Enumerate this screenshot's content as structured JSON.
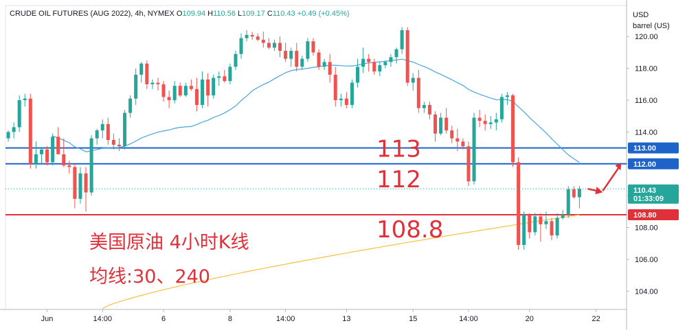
{
  "header": {
    "symbol": "CRUDE OIL FUTURES (AUG 2022), 4h, NYMEX",
    "o_label": "O",
    "o_value": "109.94",
    "h_label": "H",
    "h_value": "110.56",
    "l_label": "L",
    "l_value": "109.17",
    "c_label": "C",
    "c_value": "110.43",
    "change": "+0.49 (+0.45%)"
  },
  "axis_unit": [
    "USD",
    "barrel (US)"
  ],
  "annotations": {
    "title_line1": "美国原油 4小时K线",
    "title_line2": "均线:30、240",
    "level_113": "113",
    "level_112": "112",
    "level_1088": "108.8"
  },
  "price_tags": {
    "last_price": "110.43",
    "countdown": "01:33:09",
    "tag_113": "113.00",
    "tag_112": "112.00",
    "tag_1088": "108.80"
  },
  "colors": {
    "up": "#26a69a",
    "down": "#ef5350",
    "ma30": "#4aa3df",
    "ma240": "#f5c242",
    "level_blue": "#1e63c8",
    "level_red": "#e0303a",
    "text_red": "#e0303a"
  },
  "chart_data": {
    "type": "candlestick",
    "y_ticks": [
      "104.00",
      "106.00",
      "108.00",
      "110.00",
      "112.00",
      "114.00",
      "116.00",
      "118.00",
      "120.00"
    ],
    "ylim": [
      102.85,
      121.95
    ],
    "x_ticks": [
      {
        "label": "Jun",
        "bar": 7
      },
      {
        "label": "14:00",
        "bar": 17
      },
      {
        "label": "6",
        "bar": 28
      },
      {
        "label": "8",
        "bar": 40
      },
      {
        "label": "14:00",
        "bar": 50
      },
      {
        "label": "13",
        "bar": 61
      },
      {
        "label": "15",
        "bar": 73
      },
      {
        "label": "14:00",
        "bar": 83
      },
      {
        "label": "20",
        "bar": 94
      },
      {
        "label": "22",
        "bar": 106
      }
    ],
    "bar_count": 112,
    "candles": [
      [
        113.6,
        114.1,
        113.4,
        114.0
      ],
      [
        114.0,
        114.6,
        113.6,
        114.3
      ],
      [
        114.3,
        116.3,
        114.0,
        116.0
      ],
      [
        116.0,
        116.4,
        115.6,
        116.1
      ],
      [
        116.1,
        116.4,
        111.7,
        112.0
      ],
      [
        112.0,
        113.4,
        111.7,
        112.6
      ],
      [
        112.6,
        113.0,
        112.0,
        112.9
      ],
      [
        112.9,
        113.1,
        111.9,
        112.1
      ],
      [
        112.1,
        113.9,
        111.9,
        113.7
      ],
      [
        113.7,
        114.3,
        112.6,
        112.6
      ],
      [
        112.6,
        113.6,
        111.8,
        111.9
      ],
      [
        111.9,
        112.2,
        111.4,
        111.8
      ],
      [
        111.8,
        112.0,
        109.2,
        109.8
      ],
      [
        109.8,
        111.8,
        109.5,
        111.4
      ],
      [
        111.4,
        111.8,
        109.0,
        110.2
      ],
      [
        110.2,
        113.8,
        110.0,
        113.6
      ],
      [
        113.6,
        114.2,
        113.2,
        114.1
      ],
      [
        114.1,
        114.8,
        113.6,
        114.5
      ],
      [
        114.5,
        114.9,
        113.2,
        113.5
      ],
      [
        113.5,
        113.9,
        112.9,
        113.2
      ],
      [
        113.2,
        113.6,
        112.8,
        113.1
      ],
      [
        113.1,
        115.4,
        112.9,
        115.2
      ],
      [
        115.2,
        116.3,
        114.9,
        116.1
      ],
      [
        116.1,
        118.0,
        115.7,
        117.6
      ],
      [
        117.6,
        118.4,
        117.1,
        118.3
      ],
      [
        118.3,
        118.5,
        116.7,
        117.0
      ],
      [
        117.0,
        117.3,
        116.7,
        117.1
      ],
      [
        117.1,
        117.4,
        116.6,
        117.0
      ],
      [
        117.0,
        117.2,
        115.9,
        116.2
      ],
      [
        116.2,
        116.6,
        115.5,
        116.0
      ],
      [
        116.0,
        117.2,
        115.8,
        116.9
      ],
      [
        116.9,
        117.1,
        116.2,
        116.3
      ],
      [
        116.3,
        117.1,
        116.2,
        116.9
      ],
      [
        116.9,
        117.3,
        116.6,
        116.7
      ],
      [
        116.7,
        117.4,
        115.3,
        115.7
      ],
      [
        115.7,
        117.8,
        115.5,
        117.3
      ],
      [
        117.3,
        117.7,
        115.6,
        116.3
      ],
      [
        116.3,
        117.6,
        116.1,
        117.4
      ],
      [
        117.4,
        117.8,
        116.9,
        117.5
      ],
      [
        117.5,
        117.9,
        117.1,
        117.2
      ],
      [
        117.2,
        118.3,
        117.0,
        118.1
      ],
      [
        118.1,
        119.1,
        117.9,
        118.9
      ],
      [
        118.9,
        120.2,
        118.6,
        119.9
      ],
      [
        119.9,
        120.4,
        119.7,
        120.1
      ],
      [
        120.1,
        120.3,
        119.8,
        120.0
      ],
      [
        120.0,
        120.2,
        119.7,
        119.8
      ],
      [
        119.8,
        120.3,
        119.3,
        119.6
      ],
      [
        119.6,
        119.9,
        119.2,
        119.3
      ],
      [
        119.3,
        119.8,
        119.1,
        119.6
      ],
      [
        119.6,
        120.0,
        118.7,
        119.1
      ],
      [
        119.1,
        119.6,
        118.4,
        118.6
      ],
      [
        118.6,
        119.3,
        118.1,
        119.1
      ],
      [
        119.1,
        119.6,
        117.8,
        118.1
      ],
      [
        118.1,
        118.8,
        117.9,
        118.6
      ],
      [
        118.6,
        119.9,
        118.4,
        119.7
      ],
      [
        119.7,
        119.9,
        118.8,
        119.0
      ],
      [
        119.0,
        119.2,
        117.9,
        118.1
      ],
      [
        118.1,
        118.6,
        117.9,
        118.4
      ],
      [
        118.4,
        118.9,
        117.1,
        117.6
      ],
      [
        117.6,
        118.1,
        115.6,
        116.0
      ],
      [
        116.0,
        116.4,
        115.6,
        116.1
      ],
      [
        116.1,
        116.5,
        115.5,
        115.7
      ],
      [
        115.7,
        117.3,
        115.5,
        117.1
      ],
      [
        117.1,
        118.6,
        116.8,
        118.1
      ],
      [
        118.1,
        119.3,
        117.7,
        118.6
      ],
      [
        118.6,
        118.9,
        117.8,
        118.4
      ],
      [
        118.4,
        118.6,
        117.6,
        117.8
      ],
      [
        117.8,
        118.4,
        117.5,
        118.2
      ],
      [
        118.2,
        118.5,
        118.0,
        118.4
      ],
      [
        118.4,
        118.9,
        118.1,
        118.7
      ],
      [
        118.7,
        119.3,
        118.3,
        119.2
      ],
      [
        119.2,
        120.6,
        118.9,
        120.4
      ],
      [
        120.4,
        120.6,
        116.9,
        117.1
      ],
      [
        117.1,
        117.7,
        116.6,
        117.4
      ],
      [
        117.4,
        117.9,
        115.2,
        115.5
      ],
      [
        115.5,
        115.9,
        115.2,
        115.7
      ],
      [
        115.7,
        115.9,
        114.8,
        115.1
      ],
      [
        115.1,
        115.3,
        113.4,
        113.9
      ],
      [
        113.9,
        115.2,
        113.8,
        114.9
      ],
      [
        114.9,
        115.5,
        113.9,
        114.1
      ],
      [
        114.1,
        114.4,
        113.3,
        113.6
      ],
      [
        113.6,
        114.2,
        112.8,
        113.4
      ],
      [
        113.4,
        113.6,
        112.9,
        113.1
      ],
      [
        113.1,
        113.4,
        110.6,
        110.9
      ],
      [
        110.9,
        115.2,
        110.7,
        114.9
      ],
      [
        114.9,
        115.4,
        114.3,
        114.7
      ],
      [
        114.7,
        115.1,
        114.1,
        114.5
      ],
      [
        114.5,
        115.0,
        114.2,
        114.6
      ],
      [
        114.6,
        115.2,
        114.1,
        114.8
      ],
      [
        114.8,
        116.4,
        114.6,
        116.2
      ],
      [
        116.2,
        116.5,
        115.7,
        116.3
      ],
      [
        116.3,
        116.4,
        111.8,
        112.1
      ],
      [
        112.1,
        112.4,
        106.6,
        106.9
      ],
      [
        106.9,
        109.0,
        106.6,
        108.8
      ],
      [
        108.8,
        108.9,
        107.3,
        107.7
      ],
      [
        107.7,
        108.9,
        107.5,
        108.7
      ],
      [
        108.7,
        108.9,
        107.1,
        108.2
      ],
      [
        108.2,
        109.0,
        107.9,
        108.4
      ],
      [
        108.4,
        108.6,
        107.2,
        107.5
      ],
      [
        107.5,
        108.9,
        107.3,
        108.6
      ],
      [
        108.6,
        109.1,
        108.5,
        108.8
      ],
      [
        108.8,
        110.6,
        108.6,
        110.4
      ],
      [
        110.4,
        110.6,
        109.8,
        109.9
      ],
      [
        109.9,
        110.6,
        109.2,
        110.43
      ]
    ],
    "ma30_label": "30",
    "ma240_label": "240"
  }
}
